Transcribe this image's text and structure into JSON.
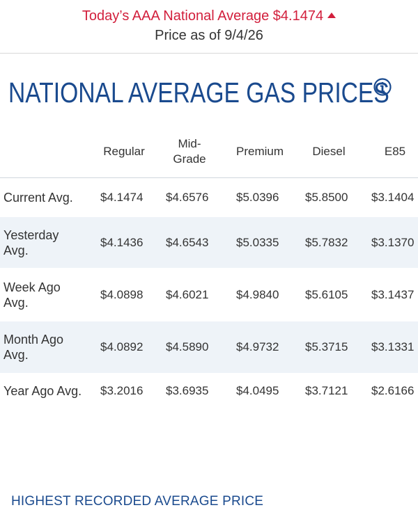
{
  "banner": {
    "headline": "Today’s AAA National Average $4.1474",
    "subline": "Price as of 9/4/26"
  },
  "page_title": "NATIONAL AVERAGE GAS PRICES",
  "icons": {
    "info": "info-icon",
    "trend": "up-triangle-icon"
  },
  "colors": {
    "brand_blue": "#1a4a8e",
    "alert_red": "#d21f3c",
    "row_shade": "#eef3f8"
  },
  "table": {
    "headers": [
      "Regular",
      "Mid-\nGrade",
      "Premium",
      "Diesel",
      "E85"
    ],
    "rows": [
      {
        "label": "Current Avg.",
        "values": [
          "$4.1474",
          "$4.6576",
          "$5.0396",
          "$5.8500",
          "$3.1404"
        ]
      },
      {
        "label": "Yesterday\nAvg.",
        "values": [
          "$4.1436",
          "$4.6543",
          "$5.0335",
          "$5.7832",
          "$3.1370"
        ]
      },
      {
        "label": "Week Ago\nAvg.",
        "values": [
          "$4.0898",
          "$4.6021",
          "$4.9840",
          "$5.6105",
          "$3.1437"
        ]
      },
      {
        "label": "Month Ago\nAvg.",
        "values": [
          "$4.0892",
          "$4.5890",
          "$4.9732",
          "$5.3715",
          "$3.1331"
        ]
      },
      {
        "label": "Year Ago Avg.",
        "values": [
          "$3.2016",
          "$3.6935",
          "$4.0495",
          "$3.7121",
          "$2.6166"
        ]
      }
    ]
  },
  "footer": {
    "link": "HIGHEST RECORDED AVERAGE PRICE"
  }
}
